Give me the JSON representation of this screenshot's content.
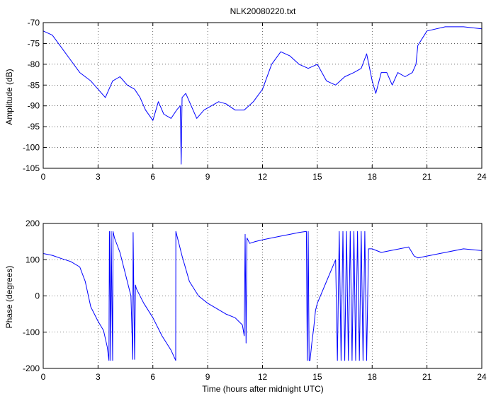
{
  "chart_data": [
    {
      "type": "line",
      "title": "NLK20080220.txt",
      "xlabel": "",
      "ylabel": "Amplitude (dB)",
      "xlim": [
        0,
        24
      ],
      "ylim": [
        -105,
        -70
      ],
      "xticks": [
        0,
        3,
        6,
        9,
        12,
        15,
        18,
        21,
        24
      ],
      "yticks": [
        -105,
        -100,
        -95,
        -90,
        -85,
        -80,
        -75,
        -70
      ],
      "grid": true,
      "color": "#0000ff",
      "series": [
        {
          "x": [
            0,
            0.5,
            1,
            1.5,
            2,
            2.3,
            2.6,
            3,
            3.4,
            3.8,
            4.2,
            4.6,
            5,
            5.3,
            5.6,
            6,
            6.3,
            6.6,
            7,
            7.3,
            7.5,
            7.55,
            7.6,
            7.8,
            8.1,
            8.4,
            8.8,
            9.2,
            9.6,
            10,
            10.5,
            11,
            11.5,
            12,
            12.5,
            13,
            13.5,
            14,
            14.5,
            15,
            15.5,
            16,
            16.5,
            17,
            17.4,
            17.7,
            18,
            18.2,
            18.5,
            18.8,
            19.1,
            19.4,
            19.8,
            20.2,
            20.4,
            20.5,
            21,
            22,
            23,
            24
          ],
          "y": [
            -72,
            -73,
            -76,
            -79,
            -82,
            -83,
            -84,
            -86,
            -88,
            -84,
            -83,
            -85,
            -86,
            -88,
            -91,
            -93.5,
            -89,
            -92,
            -93,
            -91,
            -90,
            -104,
            -88,
            -87,
            -90,
            -93,
            -91,
            -90,
            -89,
            -89.5,
            -91,
            -91,
            -89,
            -86,
            -80,
            -77,
            -78,
            -80,
            -81,
            -80,
            -84,
            -85,
            -83,
            -82,
            -81,
            -77.5,
            -84,
            -87,
            -82,
            -82,
            -85,
            -82,
            -83,
            -82,
            -80,
            -75.5,
            -72,
            -71,
            -71,
            -71.5
          ]
        }
      ]
    },
    {
      "type": "line",
      "title": "",
      "xlabel": "Time (hours after midnight UTC)",
      "ylabel": "Phase (degrees)",
      "xlim": [
        0,
        24
      ],
      "ylim": [
        -200,
        200
      ],
      "xticks": [
        0,
        3,
        6,
        9,
        12,
        15,
        18,
        21,
        24
      ],
      "yticks": [
        -200,
        -100,
        0,
        100,
        200
      ],
      "grid": true,
      "color": "#0000ff",
      "series": [
        {
          "x": [
            0,
            0.5,
            1,
            1.5,
            2,
            2.3,
            2.6,
            3,
            3.3,
            3.5,
            3.6,
            3.62,
            3.7,
            3.72,
            3.8,
            3.82,
            3.9,
            4.2,
            4.5,
            4.8,
            4.9,
            4.92,
            5.0,
            5.05,
            5.1,
            5.5,
            6,
            6.5,
            7.0,
            7.25,
            7.26,
            7.6,
            8,
            8.5,
            9,
            9.5,
            10,
            10.5,
            10.9,
            11.0,
            11.05,
            11.1,
            11.15,
            11.3,
            11.6,
            12,
            12.5,
            13,
            13.5,
            14,
            14.4,
            14.45,
            14.5,
            14.55,
            14.6,
            14.7,
            14.8,
            14.9,
            15,
            15.5,
            16,
            16.1,
            16.2,
            16.3,
            16.4,
            16.5,
            16.6,
            16.7,
            16.8,
            16.9,
            17.0,
            17.1,
            17.2,
            17.3,
            17.4,
            17.5,
            17.6,
            17.7,
            17.8,
            18,
            18.5,
            19,
            19.5,
            20,
            20.3,
            20.5,
            21,
            22,
            23,
            24
          ],
          "y": [
            117,
            112,
            103,
            95,
            80,
            40,
            -30,
            -70,
            -95,
            -140,
            -178,
            178,
            -178,
            178,
            -178,
            178,
            160,
            120,
            60,
            0,
            -175,
            175,
            -175,
            30,
            20,
            -20,
            -60,
            -110,
            -150,
            -178,
            178,
            110,
            40,
            0,
            -20,
            -35,
            -50,
            -60,
            -80,
            -110,
            170,
            -130,
            160,
            145,
            150,
            155,
            160,
            165,
            170,
            175,
            178,
            -178,
            178,
            -178,
            -178,
            -130,
            -90,
            -40,
            -20,
            40,
            100,
            -178,
            178,
            -178,
            178,
            -178,
            178,
            -178,
            178,
            -178,
            178,
            -178,
            178,
            -178,
            178,
            -178,
            178,
            -178,
            130,
            130,
            120,
            125,
            130,
            135,
            110,
            105,
            110,
            120,
            130,
            125
          ]
        }
      ]
    }
  ]
}
